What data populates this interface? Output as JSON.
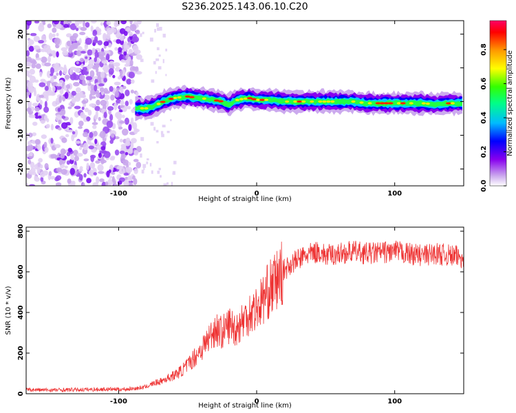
{
  "title": "S236.2025.143.06.10.C20",
  "chart_data": [
    {
      "type": "heatmap",
      "title": "S236.2025.143.06.10.C20",
      "xlabel": "Height of straight line (km)",
      "ylabel": "Frequency (Hz)",
      "xlim": [
        -167,
        150
      ],
      "ylim": [
        -25,
        24
      ],
      "xticks": [
        -100,
        0,
        100
      ],
      "yticks": [
        -20,
        -10,
        0,
        10,
        20
      ],
      "grid": false,
      "colorbar": {
        "label": "Normalized spectral amplitude",
        "range": [
          0,
          0.97
        ],
        "ticks": [
          "0.0",
          "0.2",
          "0.4",
          "0.6",
          "0.8"
        ],
        "colormap": [
          "#ffffff",
          "#ccaaee",
          "#8800ee",
          "#0000ff",
          "#00bbff",
          "#00ff88",
          "#33ff00",
          "#ffff00",
          "#ff9900",
          "#ff0000",
          "#ff0066"
        ]
      },
      "ridge": {
        "x": [
          -88,
          -80,
          -75,
          -70,
          -65,
          -60,
          -55,
          -50,
          -45,
          -40,
          -35,
          -30,
          -25,
          -20,
          -15,
          -10,
          -5,
          0,
          10,
          20,
          30,
          40,
          50,
          60,
          70,
          80,
          90,
          100,
          110,
          120,
          130,
          140,
          150
        ],
        "y": [
          -2,
          -2,
          -1.5,
          -0.5,
          0.5,
          1,
          1.3,
          1.5,
          1.2,
          1,
          0.7,
          0.4,
          0,
          -1,
          0.4,
          0.8,
          1,
          0.5,
          0.5,
          0,
          0,
          0,
          0,
          0,
          0,
          -0.5,
          -0.5,
          -0.5,
          -0.5,
          -0.5,
          -0.8,
          -0.5,
          -0.5
        ]
      },
      "noise_region_x": [
        -167,
        -85
      ]
    },
    {
      "type": "line",
      "xlabel": "Height of straight line (km)",
      "ylabel": "SNR (10 * v/v)",
      "xlim": [
        -167,
        150
      ],
      "ylim": [
        0,
        820
      ],
      "xticks": [
        -100,
        0,
        100
      ],
      "yticks": [
        0,
        200,
        400,
        600,
        800
      ],
      "grid": false,
      "color": "#ee3333",
      "series": [
        {
          "x": [
            -167,
            -150,
            -130,
            -110,
            -95,
            -85,
            -80,
            -75,
            -70,
            -65,
            -60,
            -55,
            -50,
            -45,
            -40,
            -35,
            -30,
            -25,
            -20,
            -15,
            -10,
            -5,
            0,
            5,
            10,
            15,
            20,
            25,
            30,
            35,
            40,
            45,
            50,
            60,
            70,
            80,
            90,
            100,
            110,
            120,
            130,
            140,
            150
          ],
          "values": [
            20,
            18,
            20,
            22,
            22,
            28,
            35,
            50,
            60,
            75,
            90,
            110,
            140,
            180,
            220,
            270,
            320,
            300,
            340,
            320,
            360,
            400,
            420,
            470,
            520,
            560,
            610,
            640,
            660,
            680,
            690,
            700,
            680,
            690,
            700,
            690,
            695,
            700,
            690,
            680,
            690,
            680,
            670
          ]
        }
      ]
    }
  ]
}
